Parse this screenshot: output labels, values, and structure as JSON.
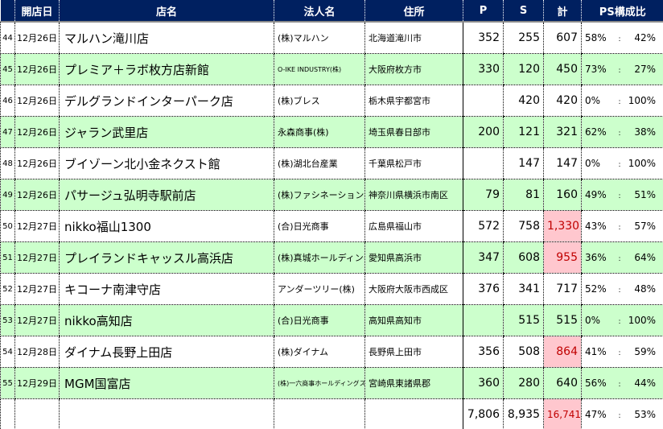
{
  "headers": [
    "",
    "開店日",
    "店名",
    "法人名",
    "住所",
    "P",
    "S",
    "計",
    "PS構成比"
  ],
  "rows": [
    {
      "no": "44",
      "date": "12月26日",
      "store": "マルハン滝川店",
      "corp": "(株)マルハン",
      "addr": "北海道滝川市",
      "p": "352",
      "s": "255",
      "total": "607",
      "pr": "58%",
      "sr": "42%",
      "hl": false
    },
    {
      "no": "45",
      "date": "12月26日",
      "store": "プレミア＋ラボ枚方店新館",
      "corp": "O-IKE INDUSTRY(株)",
      "addr": "大阪府枚方市",
      "p": "330",
      "s": "120",
      "total": "450",
      "pr": "73%",
      "sr": "27%",
      "hl": false
    },
    {
      "no": "46",
      "date": "12月26日",
      "store": "デルグランドインターパーク店",
      "corp": "(株)ブレス",
      "addr": "栃木県宇都宮市",
      "p": "",
      "s": "420",
      "total": "420",
      "pr": "0%",
      "sr": "100%",
      "hl": false
    },
    {
      "no": "47",
      "date": "12月26日",
      "store": "ジャラン武里店",
      "corp": "永森商事(株)",
      "addr": "埼玉県春日部市",
      "p": "200",
      "s": "121",
      "total": "321",
      "pr": "62%",
      "sr": "38%",
      "hl": false
    },
    {
      "no": "48",
      "date": "12月26日",
      "store": "ブイゾーン北小金ネクスト館",
      "corp": "(株)湖北台産業",
      "addr": "千葉県松戸市",
      "p": "",
      "s": "147",
      "total": "147",
      "pr": "0%",
      "sr": "100%",
      "hl": false
    },
    {
      "no": "49",
      "date": "12月26日",
      "store": "パサージュ弘明寺駅前店",
      "corp": "(株)ファシネーション",
      "addr": "神奈川県横浜市南区",
      "p": "79",
      "s": "81",
      "total": "160",
      "pr": "49%",
      "sr": "51%",
      "hl": false
    },
    {
      "no": "50",
      "date": "12月27日",
      "store": "nikko福山1300",
      "corp": "(合)日光商事",
      "addr": "広島県福山市",
      "p": "572",
      "s": "758",
      "total": "1,330",
      "pr": "43%",
      "sr": "57%",
      "hl": true
    },
    {
      "no": "51",
      "date": "12月27日",
      "store": "プレイランドキャッスル高浜店",
      "corp": "(株)真城ホールディングス",
      "addr": "愛知県高浜市",
      "p": "347",
      "s": "608",
      "total": "955",
      "pr": "36%",
      "sr": "64%",
      "hl": true
    },
    {
      "no": "52",
      "date": "12月27日",
      "store": "キコーナ南津守店",
      "corp": "アンダーツリー(株)",
      "addr": "大阪府大阪市西成区",
      "p": "376",
      "s": "341",
      "total": "717",
      "pr": "52%",
      "sr": "48%",
      "hl": false
    },
    {
      "no": "53",
      "date": "12月27日",
      "store": "nikko高知店",
      "corp": "(合)日光商事",
      "addr": "高知県高知市",
      "p": "",
      "s": "515",
      "total": "515",
      "pr": "0%",
      "sr": "100%",
      "hl": false
    },
    {
      "no": "54",
      "date": "12月28日",
      "store": "ダイナム長野上田店",
      "corp": "(株)ダイナム",
      "addr": "長野県上田市",
      "p": "356",
      "s": "508",
      "total": "864",
      "pr": "41%",
      "sr": "59%",
      "hl": true
    },
    {
      "no": "55",
      "date": "12月29日",
      "store": "MGM国富店",
      "corp": "(株)一六商事ホールディングス",
      "addr": "宮崎県東諸県郡",
      "p": "360",
      "s": "280",
      "total": "640",
      "pr": "56%",
      "sr": "44%",
      "hl": false
    }
  ],
  "totals": {
    "p": "7,806",
    "s": "8,935",
    "total": "16,741",
    "pr": "47%",
    "sr": "53%"
  },
  "colon": ":",
  "colors": {
    "header": "#002060",
    "stripe": "#ccffcc",
    "highlight": "#ffc7ce",
    "highlight_text": "#c00000"
  }
}
